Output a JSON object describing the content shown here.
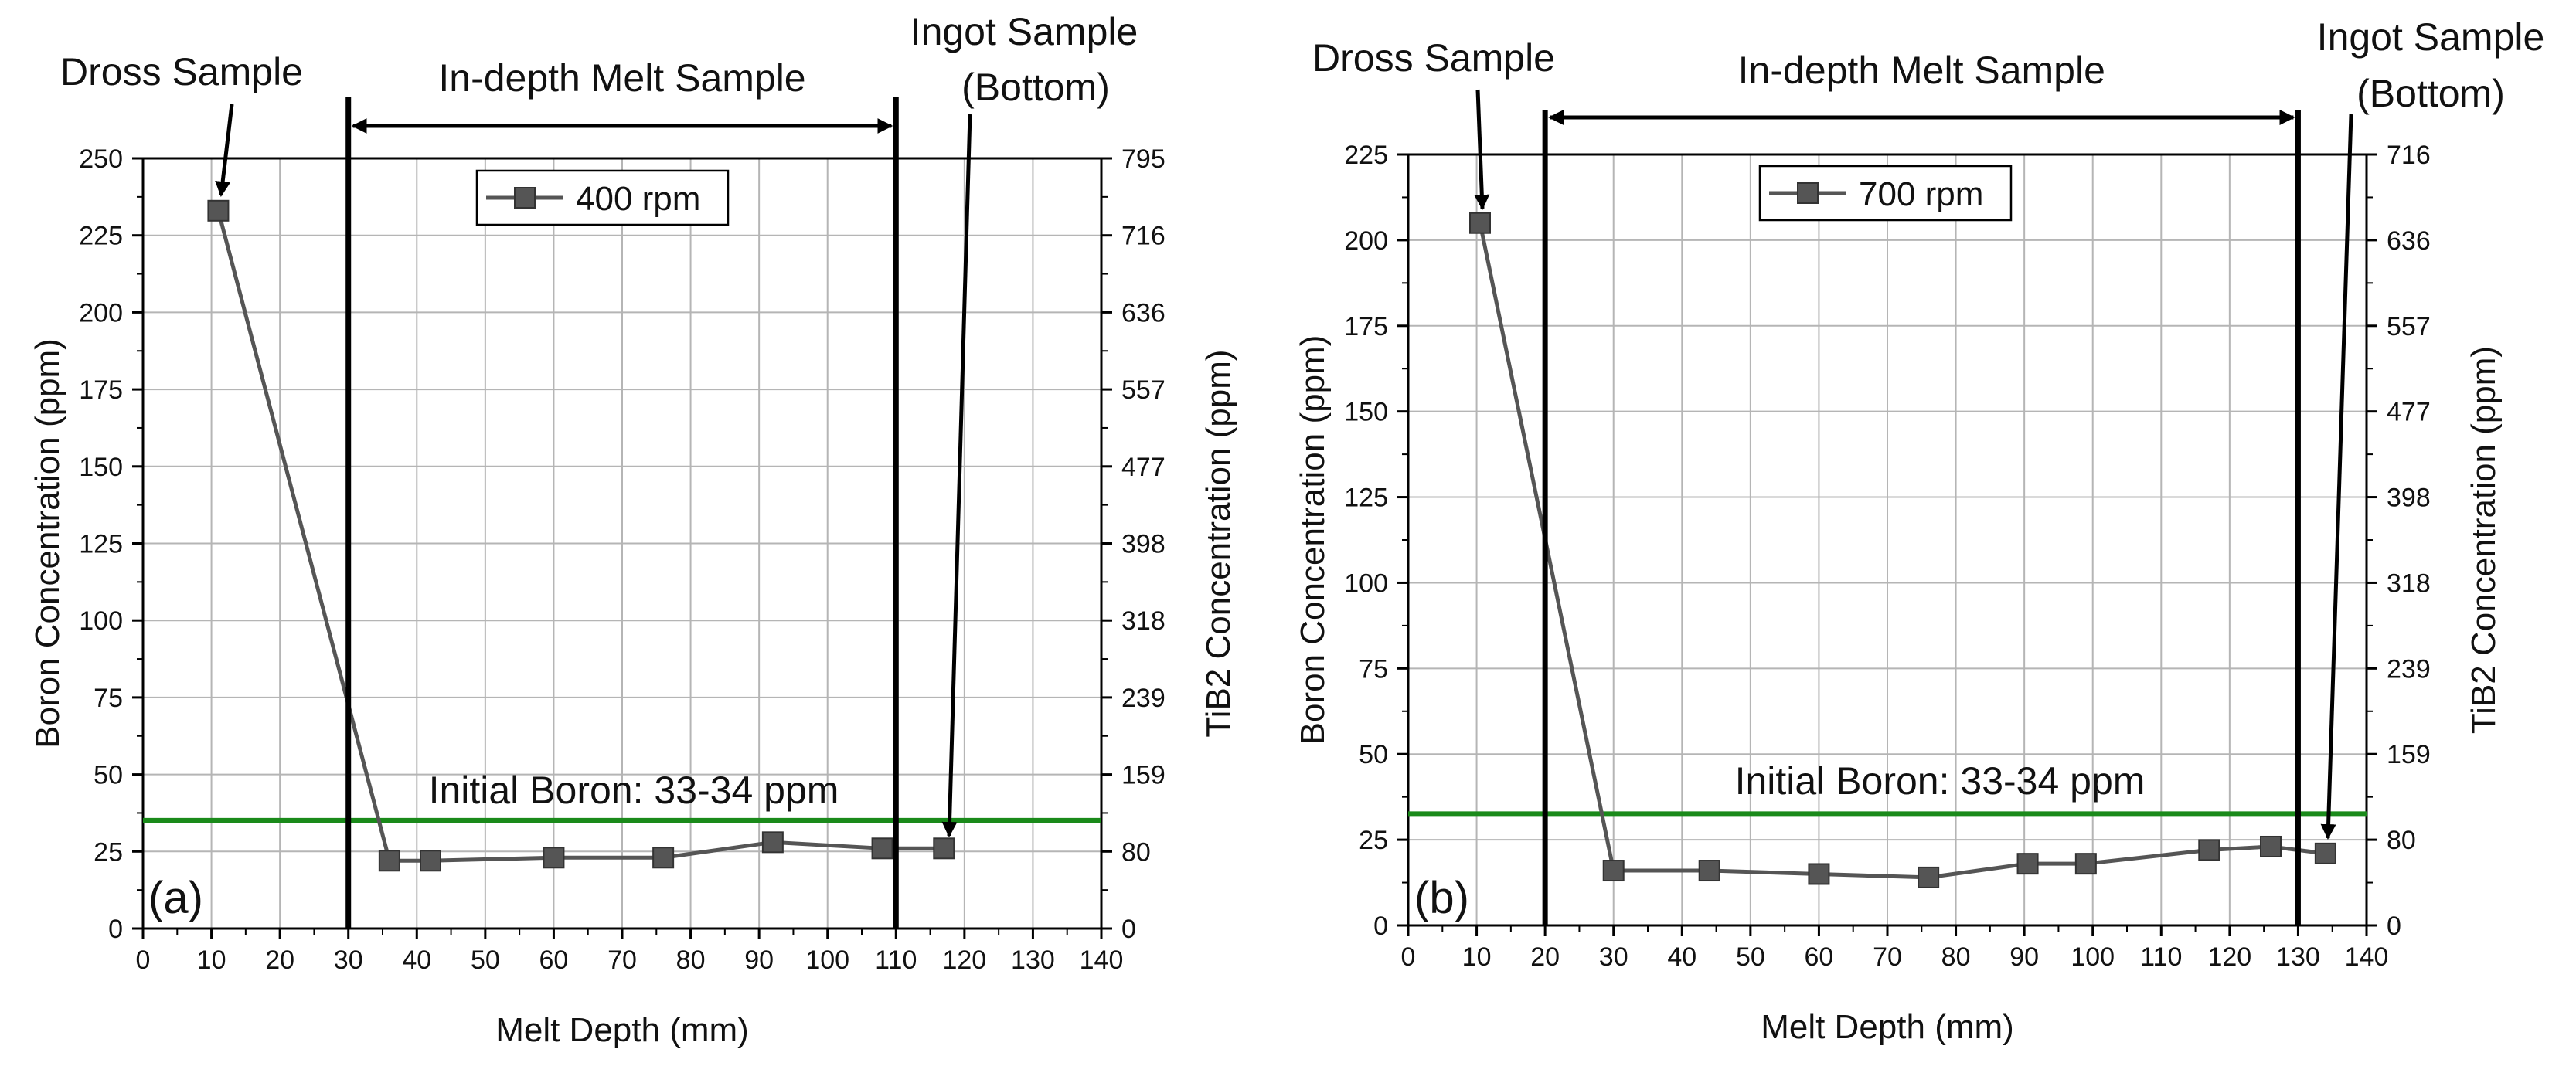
{
  "chart_data": [
    {
      "type": "line",
      "panel_label": "(a)",
      "title": "",
      "xlabel": "Melt Depth (mm)",
      "ylabel": "Boron Concentration (ppm)",
      "y2label": "TiB2 Concentration (ppm)",
      "xlim": [
        0,
        140
      ],
      "ylim": [
        0,
        250
      ],
      "xticks": [
        0,
        10,
        20,
        30,
        40,
        50,
        60,
        70,
        80,
        90,
        100,
        110,
        120,
        130,
        140
      ],
      "yticks": [
        0,
        25,
        50,
        75,
        100,
        125,
        150,
        175,
        200,
        225,
        250
      ],
      "y2ticks": [
        "0",
        "80",
        "159",
        "239",
        "318",
        "398",
        "477",
        "557",
        "636",
        "716",
        "795"
      ],
      "grid": true,
      "legend_position": "top-center",
      "series": [
        {
          "name": "400 rpm",
          "color": "#555555",
          "marker": "square",
          "x": [
            11,
            36,
            42,
            60,
            76,
            92,
            108,
            117
          ],
          "y": [
            233,
            22,
            22,
            23,
            23,
            28,
            26,
            26
          ]
        }
      ],
      "reference_line": {
        "y": 35,
        "color": "#1a8a1a",
        "label": "Initial Boron: 33-34 ppm"
      },
      "region_lines_x": [
        30,
        110
      ],
      "region_label": "In-depth Melt Sample",
      "annotations": [
        {
          "text": "Dross Sample"
        },
        {
          "text": "Ingot Sample"
        },
        {
          "text": "(Bottom)"
        }
      ]
    },
    {
      "type": "line",
      "panel_label": "(b)",
      "title": "",
      "xlabel": "Melt Depth (mm)",
      "ylabel": "Boron Concentration (ppm)",
      "y2label": "TiB2 Concentration (ppm)",
      "xlim": [
        0,
        140
      ],
      "ylim": [
        0,
        225
      ],
      "xticks": [
        0,
        10,
        20,
        30,
        40,
        50,
        60,
        70,
        80,
        90,
        100,
        110,
        120,
        130,
        140
      ],
      "yticks": [
        0,
        25,
        50,
        75,
        100,
        125,
        150,
        175,
        200,
        225
      ],
      "y2ticks": [
        "0",
        "80",
        "159",
        "239",
        "318",
        "398",
        "477",
        "557",
        "636",
        "716"
      ],
      "grid": true,
      "legend_position": "top-center",
      "series": [
        {
          "name": "700 rpm",
          "color": "#555555",
          "marker": "square",
          "x": [
            10.5,
            30,
            44,
            60,
            76,
            90.5,
            99,
            117,
            126,
            134
          ],
          "y": [
            205,
            16,
            16,
            15,
            14,
            18,
            18,
            22,
            23,
            21
          ]
        }
      ],
      "reference_line": {
        "y": 32.5,
        "color": "#1a8a1a",
        "label": "Initial Boron: 33-34 ppm"
      },
      "region_lines_x": [
        20,
        130
      ],
      "region_label": "In-depth Melt Sample",
      "annotations": [
        {
          "text": "Dross Sample"
        },
        {
          "text": "Ingot Sample"
        },
        {
          "text": "(Bottom)"
        }
      ]
    }
  ]
}
